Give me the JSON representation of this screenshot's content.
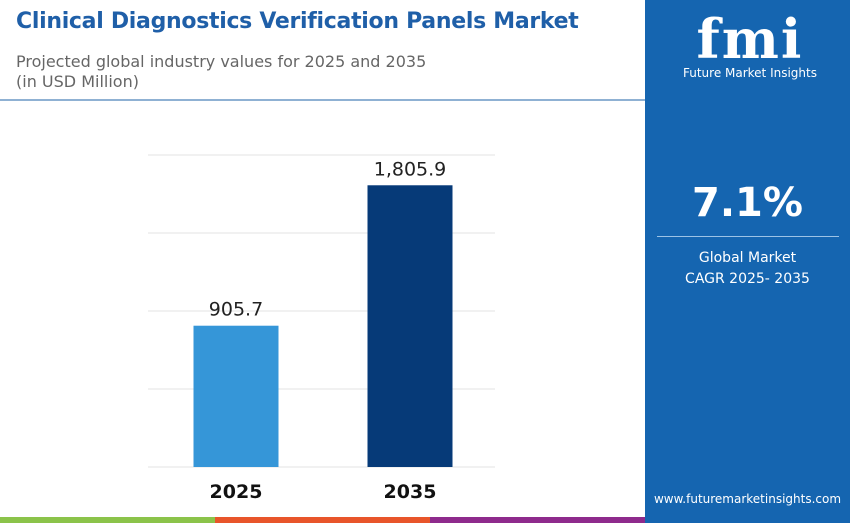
{
  "header": {
    "title": "Clinical Diagnostics Verification Panels Market",
    "subtitle": "Projected global industry values for 2025 and 2035",
    "unit": "(in USD Million)"
  },
  "chart_data": {
    "type": "bar",
    "categories": [
      "2025",
      "2035"
    ],
    "values": [
      905.7,
      1805.9
    ],
    "value_labels": [
      "905.7",
      "1,805.9"
    ],
    "ylim": [
      0,
      2000
    ],
    "grid": true,
    "gridline_step": 500,
    "colors": [
      "#3596d8",
      "#063a78"
    ],
    "xlabel": "",
    "ylabel": ""
  },
  "panel": {
    "brand_logo": "fmi",
    "brand_name": "Future Market Insights",
    "cagr_value": "7.1%",
    "cagr_label_line1": "Global Market",
    "cagr_label_line2": "CAGR 2025- 2035",
    "website": "www.futuremarketinsights.com",
    "background": "#1565b0"
  },
  "footer_colors": [
    "#8bc34a",
    "#e8552a",
    "#8e2a8c"
  ]
}
